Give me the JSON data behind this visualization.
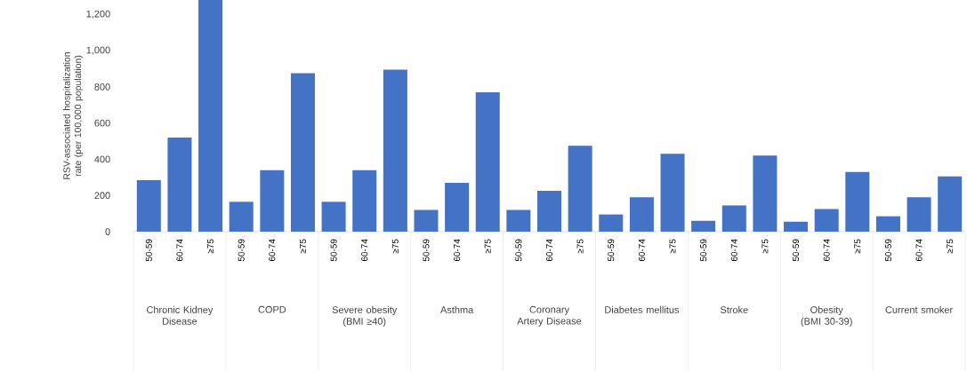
{
  "chart_data": {
    "type": "bar",
    "ylabel": "RSV-associated hospitalization rate (per 100,000 population)",
    "categories": [
      "50-59",
      "60-74",
      "≥75",
      "50-59",
      "60-74",
      "≥75",
      "50-59",
      "60-74",
      "≥75",
      "50-59",
      "60-74",
      "≥75",
      "50-59",
      "60-74",
      "≥75",
      "50-59",
      "60-74",
      "≥75",
      "50-59",
      "60-74",
      "≥75",
      "50-59",
      "60-74",
      "≥75",
      "50-59",
      "60-74",
      "≥75"
    ],
    "values": [
      285,
      520,
      1280,
      165,
      340,
      875,
      165,
      340,
      895,
      120,
      270,
      770,
      120,
      225,
      475,
      95,
      190,
      430,
      60,
      145,
      420,
      55,
      125,
      330,
      85,
      190,
      305
    ],
    "color": "#4472c4",
    "ylim": [
      0,
      1280
    ],
    "yticks": [
      0,
      200,
      400,
      600,
      800,
      {
        "value": 1000,
        "label": "1,000"
      },
      {
        "value": 1200,
        "label": "1,200"
      }
    ],
    "grid": false,
    "annotations": [
      "Chronic Kidney Disease",
      "COPD",
      "Severe obesity (BMI ≥40)",
      "Asthma",
      "Coronary Artery Disease",
      "Diabetes mellitus",
      "Stroke",
      "Obesity (BMI 30-39)",
      "Current smoker"
    ]
  }
}
